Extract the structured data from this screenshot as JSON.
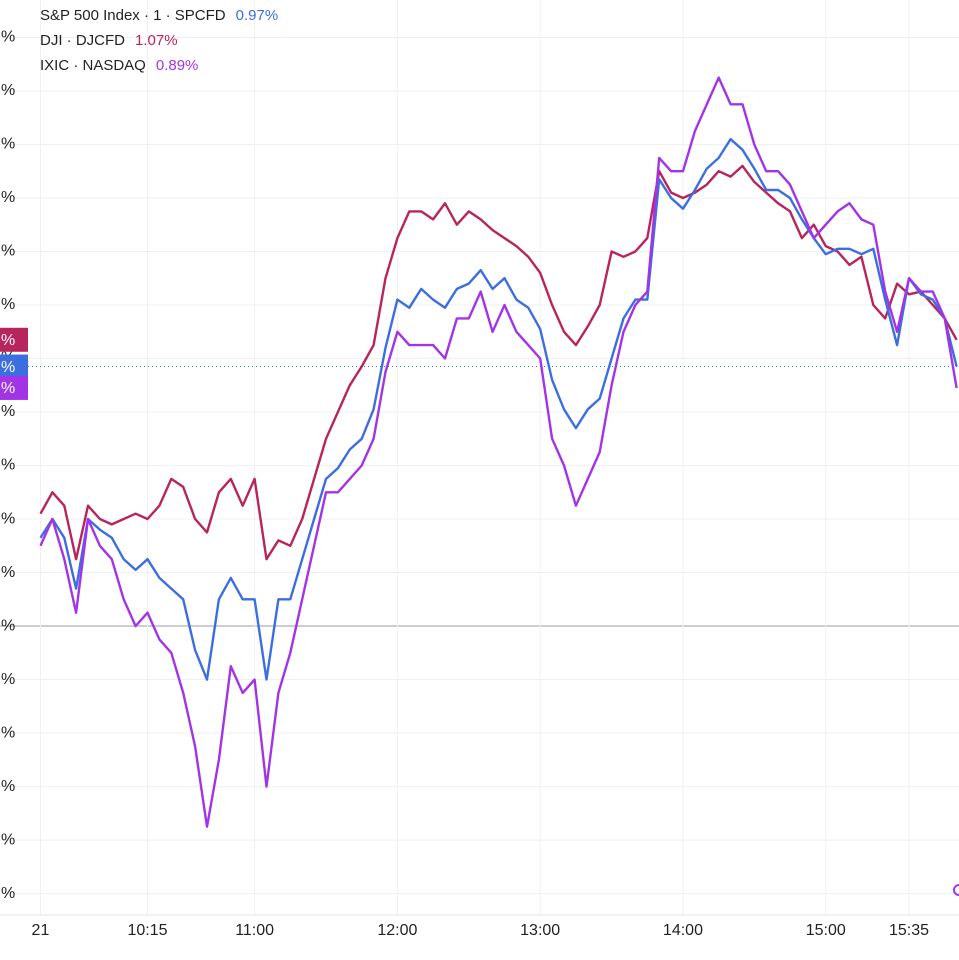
{
  "chart_data": {
    "type": "line",
    "x": [
      570,
      575,
      580,
      585,
      590,
      595,
      600,
      605,
      610,
      615,
      620,
      625,
      630,
      635,
      640,
      645,
      650,
      655,
      660,
      665,
      670,
      675,
      680,
      685,
      690,
      695,
      700,
      705,
      710,
      715,
      720,
      725,
      730,
      735,
      740,
      745,
      750,
      755,
      760,
      765,
      770,
      775,
      780,
      785,
      790,
      795,
      800,
      805,
      810,
      815,
      820,
      825,
      830,
      835,
      840,
      845,
      850,
      855,
      860,
      865,
      870,
      875,
      880,
      885,
      890,
      895,
      900,
      905,
      910,
      915,
      920,
      925,
      930,
      935,
      940,
      945,
      950,
      955
    ],
    "series": [
      {
        "name": "S&P 500 Index · 1 · SPCFD",
        "color": "#3d6ee0",
        "last_value": 0.97,
        "last_label": "0.97%",
        "axis_label": "%",
        "values": [
          0.33,
          0.4,
          0.33,
          0.14,
          0.4,
          0.36,
          0.33,
          0.25,
          0.21,
          0.25,
          0.18,
          0.14,
          0.1,
          -0.09,
          -0.2,
          0.1,
          0.18,
          0.1,
          0.1,
          -0.2,
          0.1,
          0.1,
          0.25,
          0.4,
          0.55,
          0.59,
          0.66,
          0.7,
          0.81,
          1.04,
          1.22,
          1.19,
          1.26,
          1.22,
          1.19,
          1.26,
          1.28,
          1.33,
          1.26,
          1.3,
          1.22,
          1.19,
          1.11,
          0.92,
          0.81,
          0.74,
          0.81,
          0.85,
          1.0,
          1.15,
          1.22,
          1.22,
          1.67,
          1.6,
          1.56,
          1.63,
          1.71,
          1.75,
          1.82,
          1.78,
          1.71,
          1.63,
          1.63,
          1.6,
          1.52,
          1.45,
          1.39,
          1.41,
          1.41,
          1.39,
          1.41,
          1.22,
          1.05,
          1.3,
          1.24,
          1.22,
          1.15,
          0.97
        ]
      },
      {
        "name": "DJI · DJCFD",
        "color": "#b8245c",
        "last_value": 1.07,
        "last_label": "1.07%",
        "axis_label": "%",
        "values": [
          0.42,
          0.5,
          0.45,
          0.25,
          0.45,
          0.4,
          0.38,
          0.4,
          0.42,
          0.4,
          0.45,
          0.55,
          0.52,
          0.4,
          0.35,
          0.5,
          0.55,
          0.45,
          0.55,
          0.25,
          0.32,
          0.3,
          0.4,
          0.55,
          0.7,
          0.8,
          0.9,
          0.97,
          1.05,
          1.3,
          1.45,
          1.55,
          1.55,
          1.52,
          1.58,
          1.5,
          1.55,
          1.52,
          1.48,
          1.45,
          1.42,
          1.38,
          1.32,
          1.2,
          1.1,
          1.05,
          1.12,
          1.2,
          1.4,
          1.38,
          1.4,
          1.45,
          1.7,
          1.62,
          1.6,
          1.62,
          1.65,
          1.7,
          1.68,
          1.72,
          1.66,
          1.62,
          1.58,
          1.55,
          1.45,
          1.5,
          1.42,
          1.4,
          1.35,
          1.38,
          1.2,
          1.15,
          1.28,
          1.24,
          1.25,
          1.2,
          1.15,
          1.07
        ]
      },
      {
        "name": "IXIC · NASDAQ",
        "color": "#a334e6",
        "last_value": 0.89,
        "last_label": "0.89%",
        "axis_label": "%",
        "values": [
          0.3,
          0.4,
          0.25,
          0.05,
          0.4,
          0.3,
          0.25,
          0.1,
          0.0,
          0.05,
          -0.05,
          -0.1,
          -0.25,
          -0.45,
          -0.75,
          -0.5,
          -0.15,
          -0.25,
          -0.2,
          -0.6,
          -0.25,
          -0.1,
          0.1,
          0.3,
          0.5,
          0.5,
          0.55,
          0.6,
          0.7,
          0.95,
          1.1,
          1.05,
          1.05,
          1.05,
          1.0,
          1.15,
          1.15,
          1.25,
          1.1,
          1.2,
          1.1,
          1.05,
          1.0,
          0.7,
          0.6,
          0.45,
          0.55,
          0.65,
          0.9,
          1.1,
          1.2,
          1.25,
          1.75,
          1.7,
          1.7,
          1.85,
          1.95,
          2.05,
          1.95,
          1.95,
          1.8,
          1.7,
          1.7,
          1.65,
          1.55,
          1.45,
          1.5,
          1.55,
          1.58,
          1.52,
          1.5,
          1.25,
          1.1,
          1.3,
          1.25,
          1.25,
          1.15,
          0.89
        ]
      }
    ],
    "xlim": [
      553,
      956
    ],
    "xticks": [
      {
        "value": 570,
        "label": "21"
      },
      {
        "value": 615,
        "label": "10:15"
      },
      {
        "value": 660,
        "label": "11:00"
      },
      {
        "value": 720,
        "label": "12:00"
      },
      {
        "value": 780,
        "label": "13:00"
      },
      {
        "value": 840,
        "label": "14:00"
      },
      {
        "value": 900,
        "label": "15:00"
      },
      {
        "value": 935,
        "label": "15:35"
      }
    ],
    "ylim": [
      -1.08,
      2.34
    ],
    "yticks": [
      {
        "value": 2.2,
        "label": "%"
      },
      {
        "value": 2.0,
        "label": "%"
      },
      {
        "value": 1.8,
        "label": "%"
      },
      {
        "value": 1.6,
        "label": "%"
      },
      {
        "value": 1.4,
        "label": "%"
      },
      {
        "value": 1.2,
        "label": "%"
      },
      {
        "value": 1.0,
        "label": "%"
      },
      {
        "value": 0.8,
        "label": "%"
      },
      {
        "value": 0.6,
        "label": "%"
      },
      {
        "value": 0.4,
        "label": "%"
      },
      {
        "value": 0.2,
        "label": "%"
      },
      {
        "value": 0,
        "label": "%"
      },
      {
        "value": -0.2,
        "label": "%"
      },
      {
        "value": -0.4,
        "label": "%"
      },
      {
        "value": -0.6,
        "label": "%"
      },
      {
        "value": -0.8,
        "label": "%"
      },
      {
        "value": -1.0,
        "label": "%"
      }
    ],
    "grid": true,
    "zero_line": true,
    "legend": "top-left"
  }
}
